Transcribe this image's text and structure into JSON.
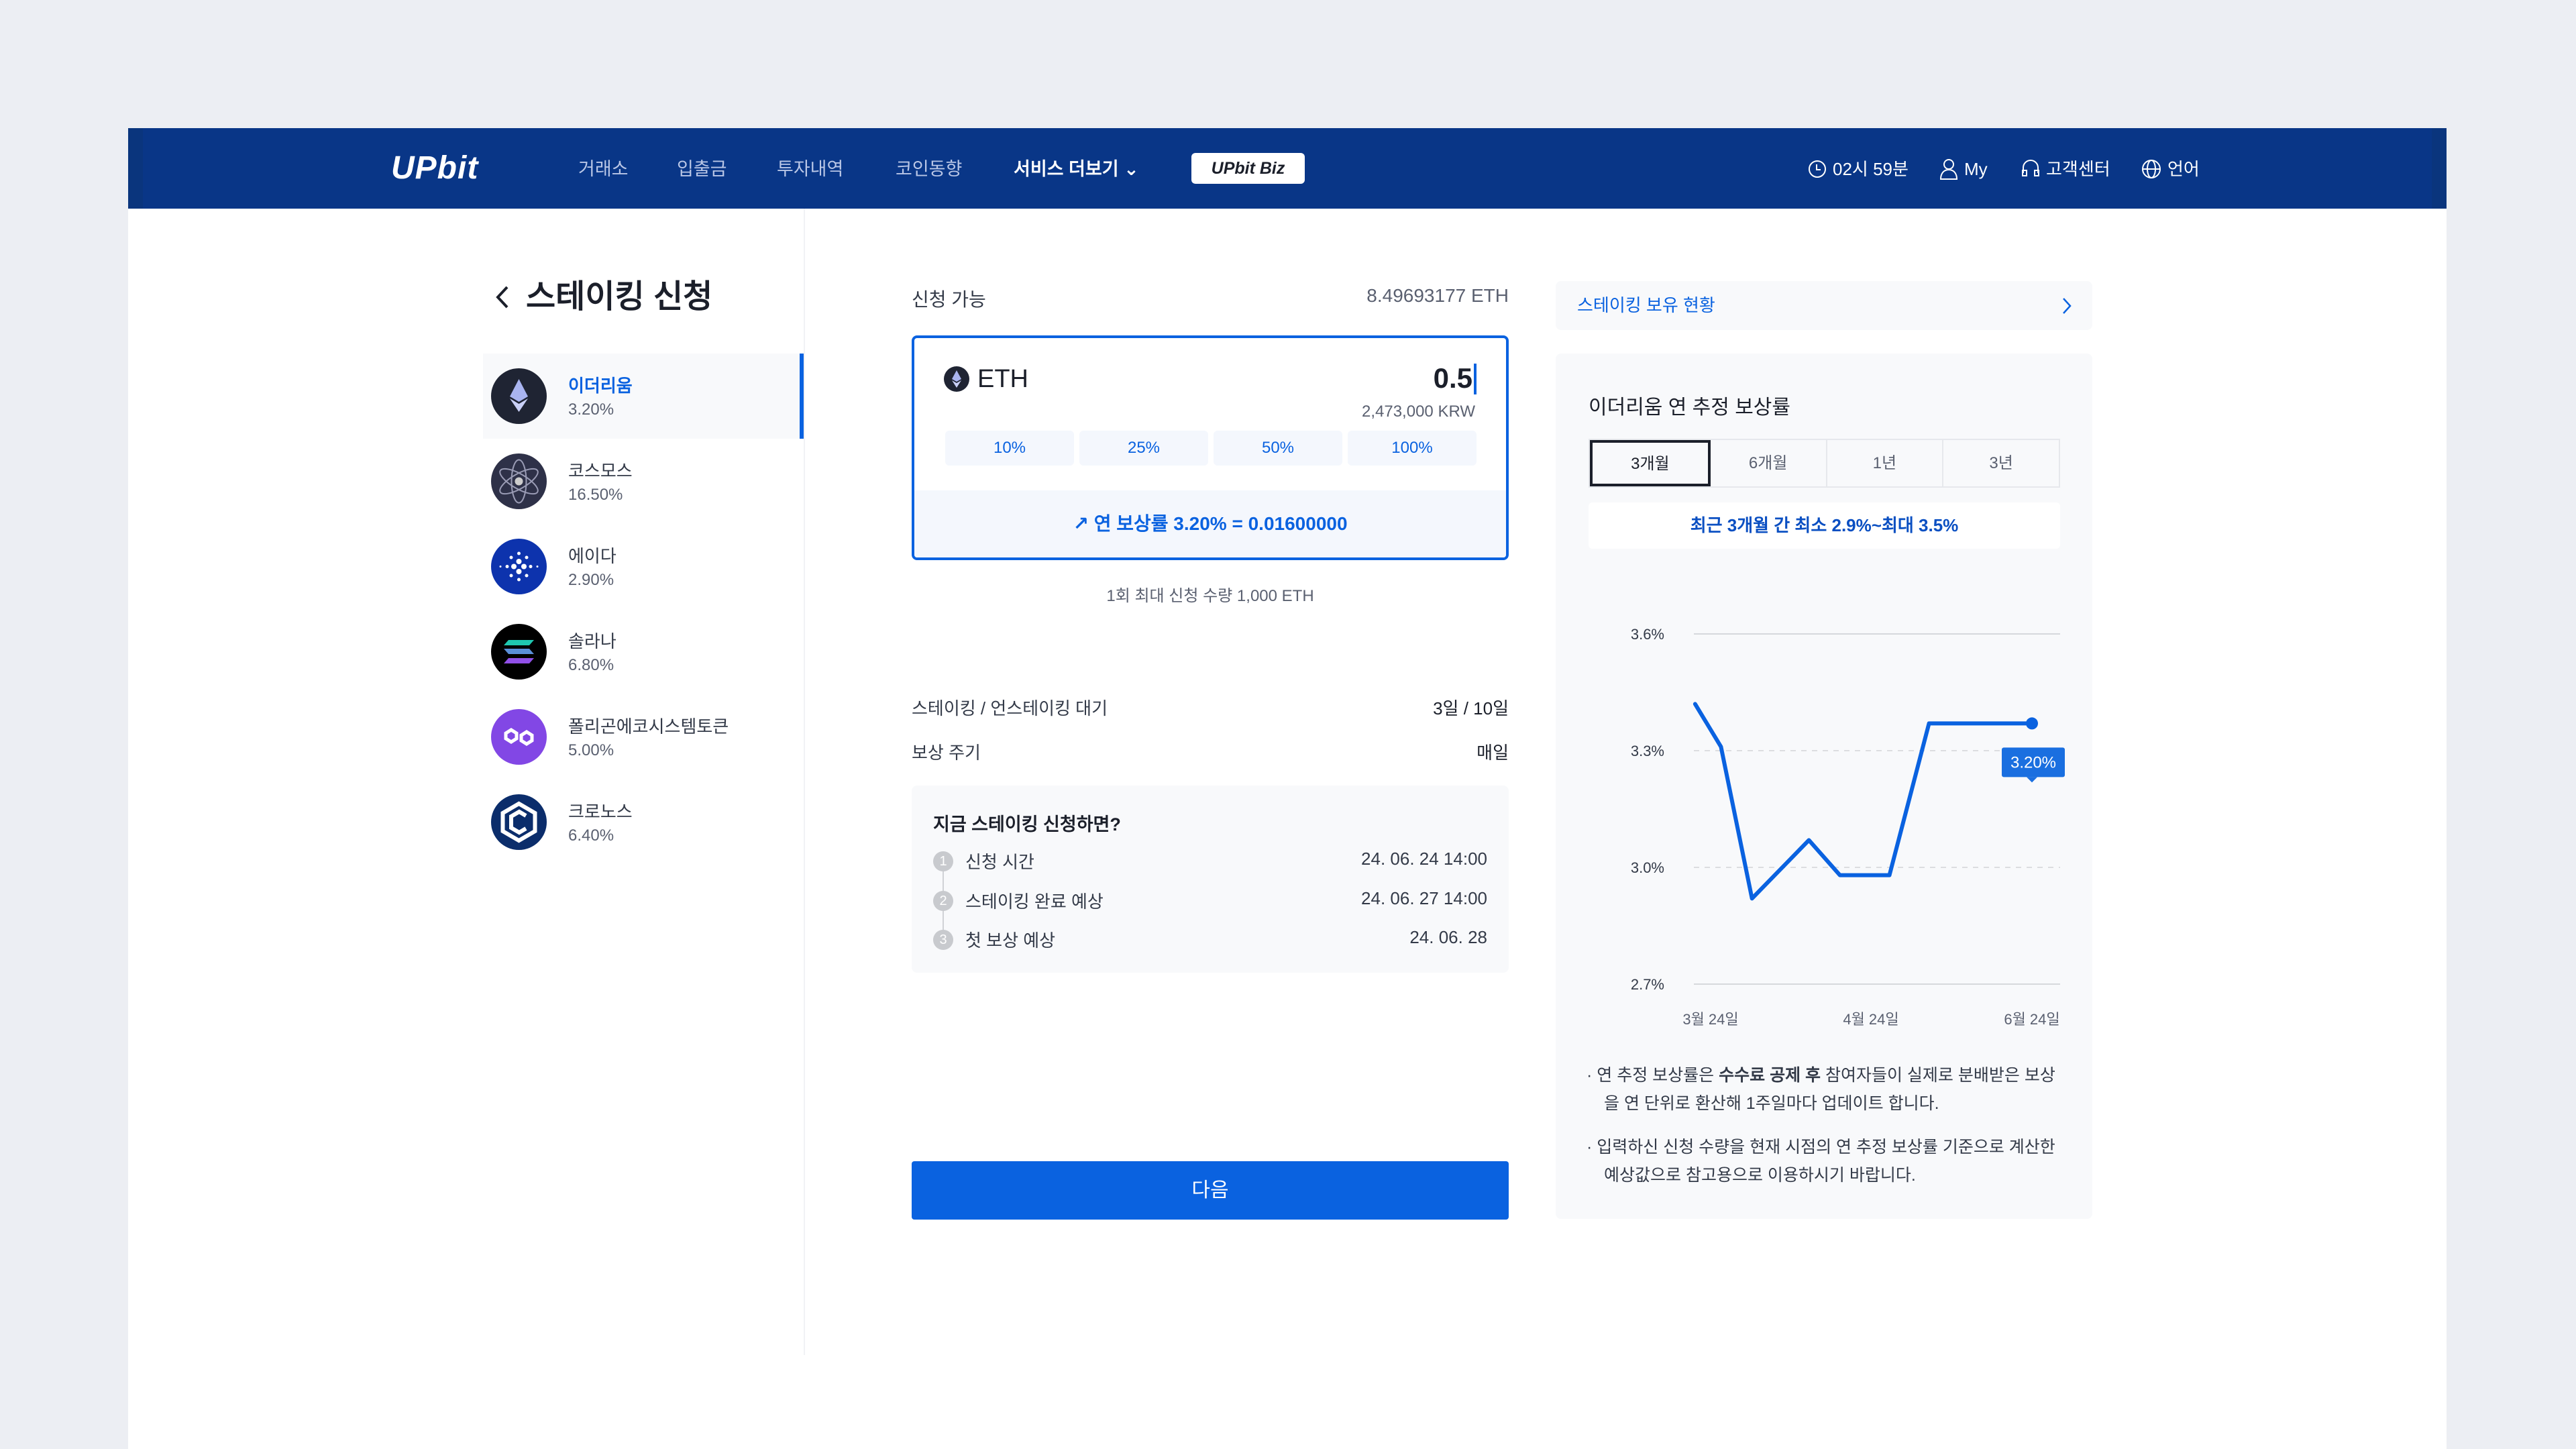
{
  "header": {
    "logo": "UPbit",
    "nav": [
      "거래소",
      "입출금",
      "투자내역",
      "코인동향"
    ],
    "more": "서비스 더보기",
    "biz": "UPbit Biz",
    "time": "02시 59분",
    "my": "My",
    "support": "고객센터",
    "language": "언어"
  },
  "sidebar": {
    "title": "스테이킹 신청",
    "items": [
      {
        "name": "이더리움",
        "rate": "3.20%",
        "icon": "ethereum-icon",
        "active": true
      },
      {
        "name": "코스모스",
        "rate": "16.50%",
        "icon": "cosmos-icon"
      },
      {
        "name": "에이다",
        "rate": "2.90%",
        "icon": "cardano-icon"
      },
      {
        "name": "솔라나",
        "rate": "6.80%",
        "icon": "solana-icon"
      },
      {
        "name": "폴리곤에코시스템토큰",
        "rate": "5.00%",
        "icon": "polygon-icon"
      },
      {
        "name": "크로노스",
        "rate": "6.40%",
        "icon": "cronos-icon"
      }
    ]
  },
  "form": {
    "available_label": "신청 가능",
    "available_value": "8.49693177 ETH",
    "symbol": "ETH",
    "amount": "0.5",
    "krw": "2,473,000 KRW",
    "percents": [
      "10%",
      "25%",
      "50%",
      "100%"
    ],
    "reward": "연 보상률 3.20% = 0.01600000",
    "max_note": "1회 최대 신청 수량 1,000 ETH",
    "info": [
      {
        "label": "스테이킹 / 언스테이킹 대기",
        "value": "3일 / 10일"
      },
      {
        "label": "보상 주기",
        "value": "매일"
      }
    ],
    "timeline_title": "지금 스테이킹 신청하면?",
    "timeline": [
      {
        "n": "1",
        "label": "신청 시간",
        "value": "24. 06. 24 14:00"
      },
      {
        "n": "2",
        "label": "스테이킹 완료 예상",
        "value": "24. 06. 27 14:00"
      },
      {
        "n": "3",
        "label": "첫 보상 예상",
        "value": "24. 06. 28"
      }
    ],
    "next": "다음"
  },
  "right": {
    "holdings_link": "스테이킹 보유 현황",
    "chart_title": "이더리움 연 추정 보상률",
    "tabs": [
      "3개월",
      "6개월",
      "1년",
      "3년"
    ],
    "active_tab": "3개월",
    "range": "최근 3개월 간 최소 2.9%~최대 3.5%",
    "notes": [
      {
        "pre": "연 추정 보상률은 ",
        "bold": "수수료 공제 후",
        "post": " 참여자들이 실제로 분배받은 보상을 연 단위로 환산해 1주일마다 업데이트 합니다."
      },
      {
        "pre": "입력하신 신청 수량을 현재 시점의 연 추정 보상률 기준으로 계산한 예상값으로 참고용으로 이용하시기 바랍니다.",
        "bold": "",
        "post": ""
      }
    ]
  },
  "colors": {
    "header": "#093687",
    "accent": "#0a62e0"
  },
  "chart_data": {
    "type": "line",
    "y_ticks": [
      "3.6%",
      "3.3%",
      "3.0%",
      "2.7%"
    ],
    "ylim": [
      2.7,
      3.6
    ],
    "x_ticks": [
      "3월 24일",
      "4월 24일",
      "6월 24일"
    ],
    "series": [
      {
        "points": [
          [
            "03-21",
            3.42
          ],
          [
            "03-26",
            3.31
          ],
          [
            "04-01",
            2.92
          ],
          [
            "04-12",
            3.07
          ],
          [
            "04-18",
            2.98
          ],
          [
            "05-01",
            2.98
          ],
          [
            "05-16",
            3.37
          ],
          [
            "06-24",
            3.37
          ]
        ]
      }
    ],
    "annotation": "3.20%",
    "grid": "dashed-horizontal"
  }
}
